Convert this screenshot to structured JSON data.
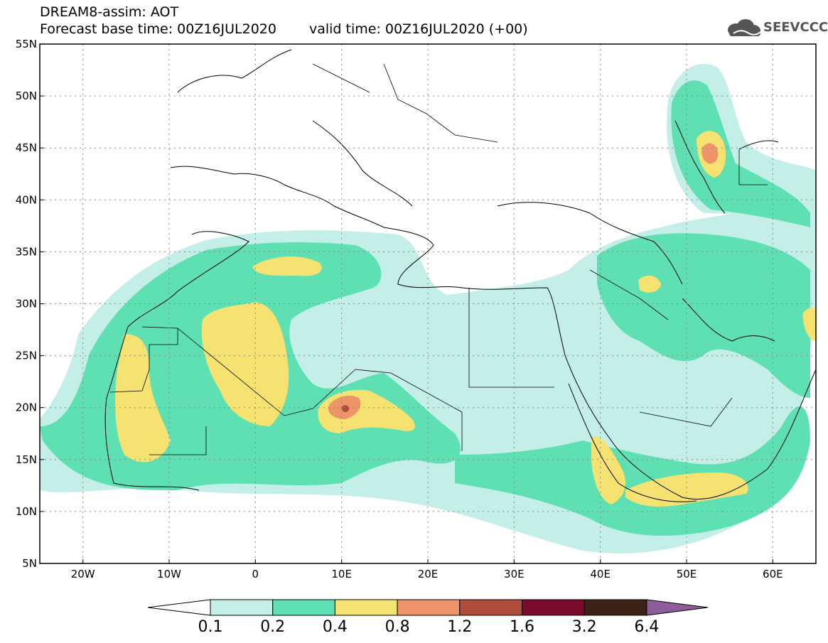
{
  "title": {
    "line1": "DREAM8-assim: AOT",
    "base_time": "Forecast base time: 00Z16JUL2020",
    "valid_time": "valid time: 00Z16JUL2020 (+00)"
  },
  "logo": {
    "text": "SEEVCCC",
    "icon": "cloud-logo-icon"
  },
  "map": {
    "lon_range": [
      -25,
      65
    ],
    "lat_range": [
      5,
      55
    ],
    "lat_ticks": [
      "55N",
      "50N",
      "45N",
      "40N",
      "35N",
      "30N",
      "25N",
      "20N",
      "15N",
      "10N",
      "5N"
    ],
    "lon_ticks": [
      "20W",
      "10W",
      "0",
      "10E",
      "20E",
      "30E",
      "40E",
      "50E",
      "60E"
    ],
    "grid": true
  },
  "colorbar": {
    "labels": [
      "0.1",
      "0.2",
      "0.4",
      "0.8",
      "1.2",
      "1.6",
      "3.2",
      "6.4"
    ],
    "colors": [
      "#ffffff",
      "#c4efe9",
      "#5ee0b2",
      "#f6e271",
      "#ed9468",
      "#b04d3b",
      "#7c0a2b",
      "#3c2316",
      "#8f5d9c"
    ]
  }
}
